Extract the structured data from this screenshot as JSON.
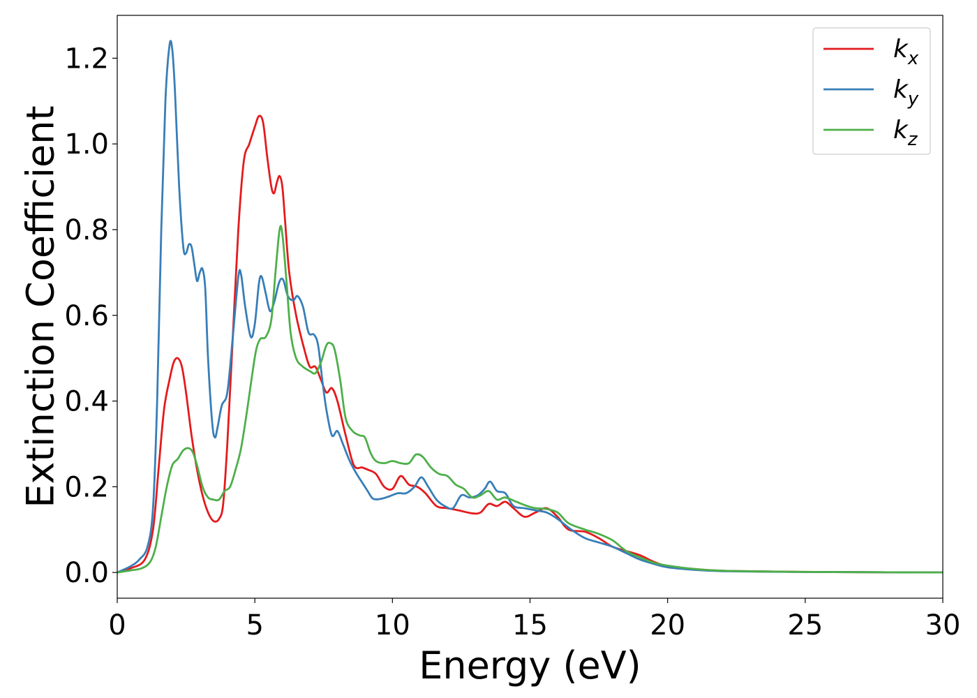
{
  "chart_data": {
    "type": "line",
    "xlabel": "Energy (eV)",
    "ylabel": "Extinction Coefficient",
    "xlim": [
      0,
      30
    ],
    "ylim": [
      -0.06,
      1.3
    ],
    "xticks": [
      0,
      5,
      10,
      15,
      20,
      25,
      30
    ],
    "yticks": [
      0.0,
      0.2,
      0.4,
      0.6,
      0.8,
      1.0,
      1.2
    ],
    "grid": false,
    "legend_position": "top-right",
    "series": [
      {
        "name": "k",
        "sub": "x",
        "color": "#e41a1c",
        "points": [
          [
            0,
            0
          ],
          [
            0.5,
            0.01
          ],
          [
            1.0,
            0.03
          ],
          [
            1.3,
            0.1
          ],
          [
            1.5,
            0.24
          ],
          [
            1.7,
            0.38
          ],
          [
            1.9,
            0.45
          ],
          [
            2.05,
            0.49
          ],
          [
            2.2,
            0.5
          ],
          [
            2.35,
            0.48
          ],
          [
            2.5,
            0.42
          ],
          [
            2.7,
            0.32
          ],
          [
            2.9,
            0.24
          ],
          [
            3.1,
            0.18
          ],
          [
            3.3,
            0.14
          ],
          [
            3.5,
            0.12
          ],
          [
            3.7,
            0.125
          ],
          [
            3.85,
            0.16
          ],
          [
            4.0,
            0.3
          ],
          [
            4.2,
            0.55
          ],
          [
            4.4,
            0.8
          ],
          [
            4.6,
            0.96
          ],
          [
            4.8,
            1.0
          ],
          [
            5.0,
            1.04
          ],
          [
            5.15,
            1.065
          ],
          [
            5.3,
            1.05
          ],
          [
            5.45,
            0.97
          ],
          [
            5.6,
            0.9
          ],
          [
            5.7,
            0.885
          ],
          [
            5.8,
            0.91
          ],
          [
            5.9,
            0.925
          ],
          [
            6.0,
            0.9
          ],
          [
            6.1,
            0.82
          ],
          [
            6.25,
            0.7
          ],
          [
            6.5,
            0.6
          ],
          [
            6.8,
            0.52
          ],
          [
            7.0,
            0.48
          ],
          [
            7.2,
            0.48
          ],
          [
            7.4,
            0.45
          ],
          [
            7.6,
            0.42
          ],
          [
            7.8,
            0.43
          ],
          [
            8.0,
            0.4
          ],
          [
            8.3,
            0.32
          ],
          [
            8.6,
            0.25
          ],
          [
            8.9,
            0.245
          ],
          [
            9.1,
            0.24
          ],
          [
            9.4,
            0.23
          ],
          [
            9.7,
            0.2
          ],
          [
            10.0,
            0.195
          ],
          [
            10.3,
            0.225
          ],
          [
            10.6,
            0.205
          ],
          [
            10.9,
            0.2
          ],
          [
            11.2,
            0.185
          ],
          [
            11.6,
            0.155
          ],
          [
            12.0,
            0.15
          ],
          [
            12.4,
            0.145
          ],
          [
            12.9,
            0.138
          ],
          [
            13.2,
            0.14
          ],
          [
            13.5,
            0.16
          ],
          [
            13.8,
            0.155
          ],
          [
            14.1,
            0.165
          ],
          [
            14.4,
            0.15
          ],
          [
            14.8,
            0.13
          ],
          [
            15.2,
            0.14
          ],
          [
            15.6,
            0.15
          ],
          [
            16.0,
            0.13
          ],
          [
            16.4,
            0.1
          ],
          [
            17.0,
            0.095
          ],
          [
            17.5,
            0.08
          ],
          [
            18.0,
            0.06
          ],
          [
            18.5,
            0.05
          ],
          [
            19.0,
            0.04
          ],
          [
            19.5,
            0.025
          ],
          [
            20.0,
            0.015
          ],
          [
            21.0,
            0.008
          ],
          [
            22.0,
            0.004
          ],
          [
            24.0,
            0.002
          ],
          [
            26.0,
            0.001
          ],
          [
            30.0,
            0.0
          ]
        ]
      },
      {
        "name": "k",
        "sub": "y",
        "color": "#377eb8",
        "points": [
          [
            0,
            0
          ],
          [
            0.5,
            0.015
          ],
          [
            0.8,
            0.03
          ],
          [
            1.1,
            0.06
          ],
          [
            1.3,
            0.15
          ],
          [
            1.45,
            0.4
          ],
          [
            1.6,
            0.8
          ],
          [
            1.75,
            1.1
          ],
          [
            1.9,
            1.23
          ],
          [
            2.0,
            1.22
          ],
          [
            2.1,
            1.12
          ],
          [
            2.25,
            0.9
          ],
          [
            2.4,
            0.76
          ],
          [
            2.5,
            0.745
          ],
          [
            2.6,
            0.765
          ],
          [
            2.7,
            0.76
          ],
          [
            2.8,
            0.72
          ],
          [
            2.9,
            0.68
          ],
          [
            3.0,
            0.7
          ],
          [
            3.1,
            0.708
          ],
          [
            3.2,
            0.66
          ],
          [
            3.3,
            0.5
          ],
          [
            3.45,
            0.35
          ],
          [
            3.55,
            0.315
          ],
          [
            3.65,
            0.34
          ],
          [
            3.8,
            0.39
          ],
          [
            4.0,
            0.42
          ],
          [
            4.2,
            0.55
          ],
          [
            4.4,
            0.69
          ],
          [
            4.5,
            0.695
          ],
          [
            4.65,
            0.62
          ],
          [
            4.85,
            0.55
          ],
          [
            5.0,
            0.58
          ],
          [
            5.15,
            0.675
          ],
          [
            5.25,
            0.69
          ],
          [
            5.4,
            0.65
          ],
          [
            5.55,
            0.61
          ],
          [
            5.7,
            0.63
          ],
          [
            5.85,
            0.67
          ],
          [
            5.95,
            0.685
          ],
          [
            6.05,
            0.68
          ],
          [
            6.2,
            0.645
          ],
          [
            6.4,
            0.635
          ],
          [
            6.55,
            0.645
          ],
          [
            6.75,
            0.62
          ],
          [
            6.95,
            0.56
          ],
          [
            7.15,
            0.555
          ],
          [
            7.3,
            0.53
          ],
          [
            7.45,
            0.45
          ],
          [
            7.6,
            0.38
          ],
          [
            7.8,
            0.32
          ],
          [
            8.0,
            0.33
          ],
          [
            8.2,
            0.3
          ],
          [
            8.45,
            0.26
          ],
          [
            8.7,
            0.23
          ],
          [
            8.9,
            0.21
          ],
          [
            9.1,
            0.19
          ],
          [
            9.3,
            0.172
          ],
          [
            9.6,
            0.172
          ],
          [
            9.9,
            0.178
          ],
          [
            10.2,
            0.185
          ],
          [
            10.5,
            0.185
          ],
          [
            10.8,
            0.2
          ],
          [
            11.05,
            0.222
          ],
          [
            11.3,
            0.2
          ],
          [
            11.6,
            0.17
          ],
          [
            11.9,
            0.155
          ],
          [
            12.2,
            0.15
          ],
          [
            12.5,
            0.18
          ],
          [
            12.8,
            0.175
          ],
          [
            13.1,
            0.18
          ],
          [
            13.35,
            0.195
          ],
          [
            13.55,
            0.212
          ],
          [
            13.8,
            0.19
          ],
          [
            14.1,
            0.185
          ],
          [
            14.4,
            0.155
          ],
          [
            14.8,
            0.15
          ],
          [
            15.2,
            0.145
          ],
          [
            15.6,
            0.14
          ],
          [
            16.0,
            0.125
          ],
          [
            16.5,
            0.1
          ],
          [
            17.0,
            0.08
          ],
          [
            17.5,
            0.07
          ],
          [
            18.0,
            0.06
          ],
          [
            18.5,
            0.045
          ],
          [
            19.0,
            0.03
          ],
          [
            19.5,
            0.02
          ],
          [
            20.0,
            0.012
          ],
          [
            21.0,
            0.006
          ],
          [
            22.0,
            0.003
          ],
          [
            24.0,
            0.0015
          ],
          [
            26.0,
            0.001
          ],
          [
            30.0,
            0.0
          ]
        ]
      },
      {
        "name": "k",
        "sub": "z",
        "color": "#4daf4a",
        "points": [
          [
            0,
            0
          ],
          [
            0.5,
            0.005
          ],
          [
            0.9,
            0.01
          ],
          [
            1.2,
            0.025
          ],
          [
            1.4,
            0.06
          ],
          [
            1.6,
            0.13
          ],
          [
            1.8,
            0.2
          ],
          [
            2.0,
            0.25
          ],
          [
            2.2,
            0.265
          ],
          [
            2.4,
            0.285
          ],
          [
            2.6,
            0.29
          ],
          [
            2.75,
            0.28
          ],
          [
            2.9,
            0.25
          ],
          [
            3.1,
            0.2
          ],
          [
            3.3,
            0.175
          ],
          [
            3.5,
            0.17
          ],
          [
            3.7,
            0.17
          ],
          [
            3.9,
            0.19
          ],
          [
            4.1,
            0.2
          ],
          [
            4.3,
            0.24
          ],
          [
            4.5,
            0.29
          ],
          [
            4.7,
            0.37
          ],
          [
            4.9,
            0.46
          ],
          [
            5.05,
            0.52
          ],
          [
            5.2,
            0.545
          ],
          [
            5.4,
            0.55
          ],
          [
            5.6,
            0.59
          ],
          [
            5.75,
            0.7
          ],
          [
            5.9,
            0.8
          ],
          [
            6.0,
            0.79
          ],
          [
            6.15,
            0.68
          ],
          [
            6.3,
            0.56
          ],
          [
            6.5,
            0.5
          ],
          [
            6.75,
            0.48
          ],
          [
            7.0,
            0.47
          ],
          [
            7.2,
            0.465
          ],
          [
            7.4,
            0.49
          ],
          [
            7.6,
            0.53
          ],
          [
            7.75,
            0.535
          ],
          [
            7.9,
            0.52
          ],
          [
            8.1,
            0.45
          ],
          [
            8.3,
            0.36
          ],
          [
            8.55,
            0.33
          ],
          [
            8.8,
            0.32
          ],
          [
            9.0,
            0.315
          ],
          [
            9.2,
            0.28
          ],
          [
            9.4,
            0.26
          ],
          [
            9.7,
            0.255
          ],
          [
            10.0,
            0.26
          ],
          [
            10.3,
            0.255
          ],
          [
            10.6,
            0.255
          ],
          [
            10.85,
            0.275
          ],
          [
            11.1,
            0.27
          ],
          [
            11.4,
            0.245
          ],
          [
            11.7,
            0.23
          ],
          [
            12.0,
            0.225
          ],
          [
            12.3,
            0.205
          ],
          [
            12.6,
            0.195
          ],
          [
            12.9,
            0.175
          ],
          [
            13.2,
            0.18
          ],
          [
            13.5,
            0.19
          ],
          [
            13.8,
            0.17
          ],
          [
            14.1,
            0.175
          ],
          [
            14.5,
            0.165
          ],
          [
            14.9,
            0.155
          ],
          [
            15.2,
            0.15
          ],
          [
            15.6,
            0.148
          ],
          [
            16.0,
            0.14
          ],
          [
            16.4,
            0.115
          ],
          [
            17.0,
            0.1
          ],
          [
            17.5,
            0.09
          ],
          [
            18.0,
            0.075
          ],
          [
            18.5,
            0.05
          ],
          [
            19.0,
            0.035
          ],
          [
            19.5,
            0.023
          ],
          [
            20.0,
            0.016
          ],
          [
            21.0,
            0.008
          ],
          [
            22.0,
            0.004
          ],
          [
            24.0,
            0.002
          ],
          [
            26.0,
            0.001
          ],
          [
            30.0,
            0.0
          ]
        ]
      }
    ]
  }
}
